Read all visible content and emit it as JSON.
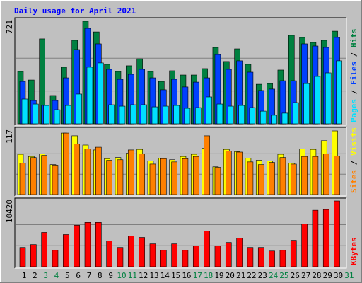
{
  "chart_data": [
    {
      "type": "bar",
      "title": "Daily usage for April 2021",
      "ylim": [
        0,
        721
      ],
      "yticks": [
        721
      ],
      "series": [
        {
          "name": "Hits",
          "color": "#008040",
          "values": [
            368,
            308,
            597,
            199,
            398,
            587,
            721,
            646,
            418,
            368,
            408,
            457,
            368,
            298,
            373,
            343,
            343,
            388,
            537,
            438,
            527,
            418,
            278,
            283,
            378,
            622,
            607,
            572,
            587,
            651,
            null
          ]
        },
        {
          "name": "Files",
          "color": "#0040ff",
          "values": [
            298,
            164,
            130,
            164,
            323,
            522,
            671,
            562,
            383,
            313,
            348,
            383,
            323,
            239,
            313,
            259,
            293,
            323,
            487,
            383,
            443,
            363,
            234,
            244,
            303,
            303,
            562,
            547,
            537,
            607,
            null
          ]
        },
        {
          "name": "Pages",
          "color": "#00e0ff",
          "values": [
            174,
            139,
            129,
            99,
            129,
            209,
            398,
            428,
            134,
            124,
            134,
            134,
            119,
            124,
            129,
            109,
            114,
            189,
            139,
            124,
            129,
            114,
            89,
            60,
            75,
            149,
            283,
            333,
            358,
            443,
            null
          ]
        }
      ]
    },
    {
      "type": "bar",
      "ylim": [
        0,
        117
      ],
      "yticks": [
        117
      ],
      "series": [
        {
          "name": "Visits",
          "color": "#ffff00",
          "values": [
            74,
            70,
            75,
            55,
            113,
            108,
            91,
            82,
            66,
            68,
            76,
            83,
            62,
            67,
            64,
            70,
            74,
            85,
            51,
            83,
            79,
            67,
            63,
            62,
            74,
            58,
            84,
            83,
            99,
            117,
            null
          ]
        },
        {
          "name": "Sites",
          "color": "#ff8000",
          "values": [
            58,
            68,
            72,
            54,
            113,
            93,
            84,
            87,
            63,
            64,
            82,
            75,
            56,
            66,
            60,
            66,
            70,
            108,
            50,
            80,
            78,
            60,
            55,
            59,
            68,
            56,
            70,
            70,
            75,
            71,
            null
          ]
        }
      ]
    },
    {
      "type": "bar",
      "ylim": [
        0,
        10420
      ],
      "yticks": [
        10420
      ],
      "series": [
        {
          "name": "KBytes",
          "color": "#ff0000",
          "values": [
            3058,
            3511,
            5437,
            2605,
            5097,
            6569,
            7022,
            7022,
            4077,
            3058,
            4870,
            4644,
            3624,
            2605,
            3624,
            2605,
            3285,
            5663,
            3285,
            3851,
            4530,
            3058,
            3058,
            2492,
            2605,
            4191,
            6796,
            8947,
            9061,
            10420,
            null
          ]
        }
      ],
      "categories": [
        "1",
        "2",
        "3",
        "4",
        "5",
        "6",
        "7",
        "8",
        "9",
        "10",
        "11",
        "12",
        "13",
        "14",
        "15",
        "16",
        "17",
        "18",
        "19",
        "20",
        "21",
        "22",
        "23",
        "24",
        "25",
        "26",
        "27",
        "28",
        "29",
        "30",
        "31"
      ],
      "category_colors": [
        "#000000",
        "#000000",
        "#008040",
        "#008040",
        "#000000",
        "#000000",
        "#000000",
        "#000000",
        "#000000",
        "#008040",
        "#008040",
        "#000000",
        "#000000",
        "#000000",
        "#000000",
        "#000000",
        "#008040",
        "#008040",
        "#000000",
        "#000000",
        "#000000",
        "#000000",
        "#000000",
        "#008040",
        "#008040",
        "#000000",
        "#000000",
        "#000000",
        "#000000",
        "#000000",
        "#008040"
      ]
    }
  ]
}
